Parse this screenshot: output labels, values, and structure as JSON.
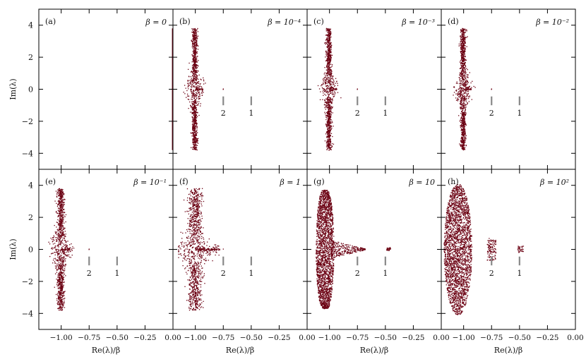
{
  "figure": {
    "y_axis_label": "Im(λ)",
    "x_axis_label": "Re(λ)/β",
    "x_ticks": [
      "−1.00",
      "−0.75",
      "−0.50",
      "−0.25",
      "0.00"
    ],
    "y_ticks": [
      "4",
      "2",
      "0",
      "−2",
      "−4"
    ],
    "marker_labels": [
      "2",
      "1"
    ]
  },
  "chart_data": {
    "type": "scatter",
    "layout": "2x4 panel grid with shared axes",
    "xlim": [
      -1.2,
      0.0
    ],
    "ylim": [
      -5,
      5
    ],
    "x_tick_values": [
      -1.0,
      -0.75,
      -0.5,
      -0.25,
      0.0
    ],
    "y_tick_values": [
      4,
      2,
      0,
      -2,
      -4
    ],
    "point_color": "#6b0012",
    "marker_color": "#888888",
    "marker_x_values": {
      "2": -0.75,
      "1": -0.5
    },
    "panels": [
      {
        "label": "(a)",
        "beta": "β = 0",
        "beta_value": 0,
        "shape": "vertical line at Re=0",
        "im_range": [
          -3.8,
          3.8
        ]
      },
      {
        "label": "(b)",
        "beta": "β = 10⁻⁴",
        "beta_value": 0.0001,
        "shape": "thin column at Re≈-1.0 with small spur",
        "im_range": [
          -3.8,
          3.8
        ],
        "markers": true
      },
      {
        "label": "(c)",
        "beta": "β = 10⁻³",
        "beta_value": 0.001,
        "shape": "thin column at Re≈-1.0 with small spur",
        "im_range": [
          -3.8,
          3.8
        ],
        "markers": true
      },
      {
        "label": "(d)",
        "beta": "β = 10⁻²",
        "beta_value": 0.01,
        "shape": "thin column at Re≈-1.0 with small spur",
        "im_range": [
          -3.8,
          3.8
        ],
        "markers": true
      },
      {
        "label": "(e)",
        "beta": "β = 10⁻¹",
        "beta_value": 0.1,
        "shape": "column at Re≈-1.0 with spur",
        "im_range": [
          -3.8,
          3.8
        ],
        "markers": true
      },
      {
        "label": "(f)",
        "beta": "β = 1",
        "beta_value": 1,
        "shape": "wider column at Re≈-1.0 with spread",
        "im_range": [
          -3.8,
          3.8
        ],
        "markers": true
      },
      {
        "label": "(g)",
        "beta": "β = 10",
        "beta_value": 10,
        "shape": "bulge at Re≈-1.05 with tail to -0.7 and cluster near -0.45",
        "im_range": [
          -3.7,
          3.7
        ],
        "markers": true
      },
      {
        "label": "(h)",
        "beta": "β = 10²",
        "beta_value": 100,
        "shape": "ellipse at Re≈-1.05 plus clusters near -0.75 and -0.5",
        "im_range": [
          -4.1,
          4.1
        ],
        "markers": true
      }
    ]
  }
}
